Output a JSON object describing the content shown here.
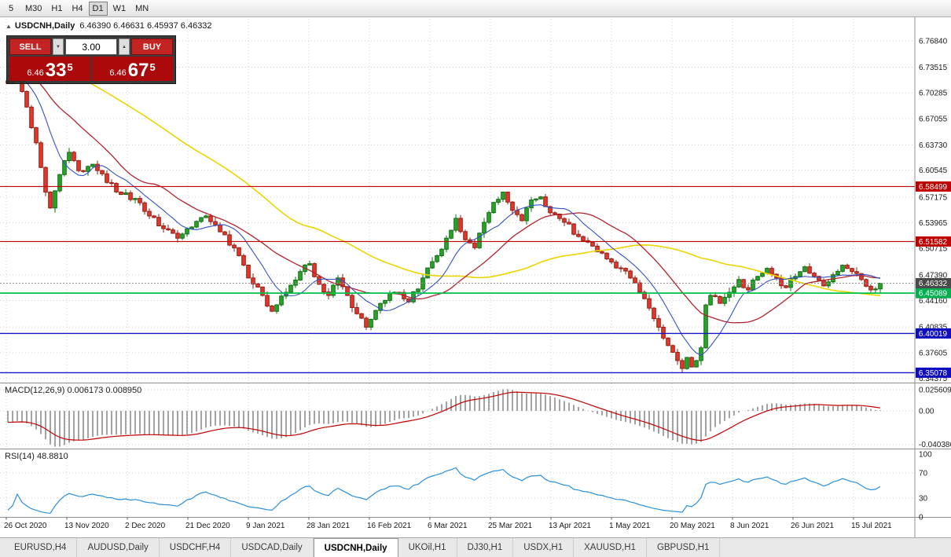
{
  "window": {
    "title": "USDCNH,Daily"
  },
  "toolbar": {
    "periods": [
      {
        "label": "5",
        "active": false
      },
      {
        "label": "M30",
        "active": false
      },
      {
        "label": "H1",
        "active": false
      },
      {
        "label": "H4",
        "active": false
      },
      {
        "label": "D1",
        "active": true
      },
      {
        "label": "W1",
        "active": false
      },
      {
        "label": "MN",
        "active": false
      }
    ]
  },
  "chart_header": {
    "collapse_icon": "▲",
    "symbol_title": "USDCNH,Daily",
    "ohlc_text": "6.46390 6.46631 6.45937 6.46332"
  },
  "one_click": {
    "sell_label": "SELL",
    "buy_label": "BUY",
    "volume": "3.00",
    "dropdown_icon": "▼",
    "spin_up_icon": "▲",
    "sell_price": {
      "big_figure": "6.46",
      "pips": "33",
      "pipette": "5"
    },
    "buy_price": {
      "big_figure": "6.46",
      "pips": "67",
      "pipette": "5"
    }
  },
  "tabs": [
    {
      "label": "EURUSD,H4",
      "active": false
    },
    {
      "label": "AUDUSD,Daily",
      "active": false
    },
    {
      "label": "USDCHF,H4",
      "active": false
    },
    {
      "label": "USDCAD,Daily",
      "active": false
    },
    {
      "label": "USDCNH,Daily",
      "active": true
    },
    {
      "label": "UKOil,H1",
      "active": false
    },
    {
      "label": "DJ30,H1",
      "active": false
    },
    {
      "label": "USDX,H1",
      "active": false
    },
    {
      "label": "XAUUSD,H1",
      "active": false
    },
    {
      "label": "GBPUSD,H1",
      "active": false
    }
  ],
  "chart_data": {
    "type": "candlestick",
    "symbol": "USDCNH",
    "timeframe": "Daily",
    "ohlc_display": {
      "open": 6.4639,
      "high": 6.46631,
      "low": 6.45937,
      "close": 6.46332
    },
    "x_labels": [
      "26 Oct 2020",
      "13 Nov 2020",
      "2 Dec 2020",
      "21 Dec 2020",
      "9 Jan 2021",
      "28 Jan 2021",
      "16 Feb 2021",
      "6 Mar 2021",
      "25 Mar 2021",
      "13 Apr 2021",
      "1 May 2021",
      "20 May 2021",
      "8 Jun 2021",
      "26 Jun 2021",
      "15 Jul 2021"
    ],
    "y_axis_labels": [
      "6.76840",
      "6.73515",
      "6.70285",
      "6.67055",
      "6.63730",
      "6.60545",
      "6.57175",
      "6.53965",
      "6.50715",
      "6.47390",
      "6.44160",
      "6.40835",
      "6.37605",
      "6.34375"
    ],
    "num_candles": 186,
    "pre_anchors": [
      [
        -60,
        6.845
      ],
      [
        -40,
        6.8
      ],
      [
        -20,
        6.755
      ],
      [
        -1,
        6.718
      ]
    ],
    "anchors": [
      [
        0,
        6.715
      ],
      [
        2,
        6.728
      ],
      [
        4,
        6.685
      ],
      [
        6,
        6.64
      ],
      [
        8,
        6.578
      ],
      [
        9,
        6.558
      ],
      [
        11,
        6.6
      ],
      [
        13,
        6.628
      ],
      [
        15,
        6.605
      ],
      [
        18,
        6.613
      ],
      [
        21,
        6.59
      ],
      [
        24,
        6.575
      ],
      [
        27,
        6.57
      ],
      [
        30,
        6.548
      ],
      [
        33,
        6.532
      ],
      [
        36,
        6.52
      ],
      [
        39,
        6.534
      ],
      [
        42,
        6.548
      ],
      [
        45,
        6.528
      ],
      [
        48,
        6.508
      ],
      [
        51,
        6.47
      ],
      [
        54,
        6.448
      ],
      [
        56,
        6.428
      ],
      [
        59,
        6.452
      ],
      [
        62,
        6.478
      ],
      [
        64,
        6.488
      ],
      [
        66,
        6.462
      ],
      [
        68,
        6.448
      ],
      [
        70,
        6.47
      ],
      [
        72,
        6.448
      ],
      [
        74,
        6.425
      ],
      [
        76,
        6.408
      ],
      [
        79,
        6.438
      ],
      [
        82,
        6.452
      ],
      [
        85,
        6.44
      ],
      [
        88,
        6.47
      ],
      [
        91,
        6.498
      ],
      [
        93,
        6.52
      ],
      [
        95,
        6.545
      ],
      [
        97,
        6.518
      ],
      [
        99,
        6.508
      ],
      [
        101,
        6.54
      ],
      [
        103,
        6.565
      ],
      [
        105,
        6.578
      ],
      [
        107,
        6.555
      ],
      [
        109,
        6.542
      ],
      [
        111,
        6.568
      ],
      [
        113,
        6.572
      ],
      [
        115,
        6.552
      ],
      [
        118,
        6.54
      ],
      [
        121,
        6.522
      ],
      [
        124,
        6.51
      ],
      [
        127,
        6.494
      ],
      [
        130,
        6.482
      ],
      [
        132,
        6.47
      ],
      [
        134,
        6.452
      ],
      [
        136,
        6.432
      ],
      [
        138,
        6.408
      ],
      [
        140,
        6.385
      ],
      [
        142,
        6.366
      ],
      [
        143,
        6.356
      ],
      [
        144,
        6.37
      ],
      [
        145,
        6.358
      ],
      [
        146,
        6.366
      ],
      [
        147,
        6.382
      ],
      [
        148,
        6.436
      ],
      [
        149,
        6.448
      ],
      [
        151,
        6.438
      ],
      [
        153,
        6.452
      ],
      [
        155,
        6.468
      ],
      [
        157,
        6.455
      ],
      [
        159,
        6.472
      ],
      [
        161,
        6.482
      ],
      [
        163,
        6.47
      ],
      [
        165,
        6.458
      ],
      [
        167,
        6.472
      ],
      [
        169,
        6.484
      ],
      [
        171,
        6.472
      ],
      [
        173,
        6.46
      ],
      [
        175,
        6.474
      ],
      [
        177,
        6.486
      ],
      [
        179,
        6.478
      ],
      [
        181,
        6.468
      ],
      [
        183,
        6.455
      ],
      [
        185,
        6.46332
      ]
    ],
    "candle_colors": {
      "up": "#26a526",
      "up_border": "#0f6d12",
      "down": "#e0392b",
      "down_border": "#9a1a10"
    },
    "moving_averages": [
      {
        "period": 56,
        "color": "#ead500",
        "width": 1.6
      },
      {
        "period": 22,
        "color": "#b3232d",
        "width": 1.3
      },
      {
        "period": 9,
        "color": "#3352c3",
        "width": 1.1
      }
    ],
    "horizontal_lines": [
      {
        "label": "6.58499",
        "value": 6.58499,
        "color": "#c00000",
        "label_bg": "#c00000",
        "width": 1.2
      },
      {
        "label": "6.51582",
        "value": 6.51582,
        "color": "#c00000",
        "label_bg": "#c00000",
        "width": 1.2
      },
      {
        "label": "6.45089",
        "value": 6.45089,
        "color": "#00c24b",
        "label_bg": "#00b050",
        "width": 1.8
      },
      {
        "label": "6.40019",
        "value": 6.40019,
        "color": "#1515c8",
        "label_bg": "#0e0ec0",
        "width": 1.4
      },
      {
        "label": "6.35078",
        "value": 6.35078,
        "color": "#1515c8",
        "label_bg": "#0e0ec0",
        "width": 1.4
      }
    ],
    "current_price": {
      "label": "6.46332",
      "value": 6.46332,
      "label_bg": "#4a4a4a"
    },
    "macd": {
      "label_full": "MACD(12,26,9) 0.006173 0.008950",
      "fast": 12,
      "slow": 26,
      "signal": 9,
      "value_main": 0.006173,
      "value_signal": 0.00895,
      "axis": [
        {
          "text": "0.025609",
          "value": 0.025609
        },
        {
          "text": "0.00",
          "value": 0
        },
        {
          "text": "-0.040386",
          "value": -0.040386
        }
      ],
      "histogram_color": "#a3a3a3",
      "signal_color": "#c00000"
    },
    "rsi": {
      "label_full": "RSI(14) 48.8810",
      "period": 14,
      "value": 48.881,
      "levels": [
        70,
        30
      ],
      "axis": [
        {
          "text": "100",
          "value": 100
        },
        {
          "text": "70",
          "value": 70
        },
        {
          "text": "30",
          "value": 30
        },
        {
          "text": "0",
          "value": 0
        }
      ],
      "line_color": "#2a8fdc"
    }
  }
}
